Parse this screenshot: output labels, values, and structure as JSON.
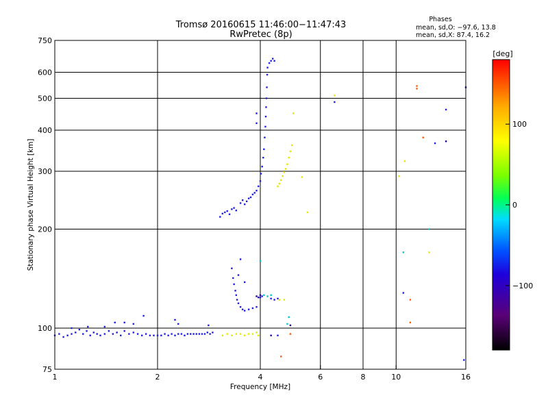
{
  "chart_data": {
    "type": "scatter",
    "title": "Tromsø 20160615 11:46:00−11:47:43",
    "subtitle": "RwPretec (8p)",
    "xlabel": "Frequency [MHz]",
    "ylabel": "Stationary phase Virtual Height [km]",
    "x_scale": "log",
    "y_scale": "log",
    "xlim": [
      1,
      16
    ],
    "ylim": [
      75,
      750
    ],
    "x_ticks": [
      {
        "value": 1,
        "label": "1"
      },
      {
        "value": 2,
        "label": "2"
      },
      {
        "value": 4,
        "label": "4"
      },
      {
        "value": 6,
        "label": "6"
      },
      {
        "value": 8,
        "label": "8"
      },
      {
        "value": 10,
        "label": "10"
      },
      {
        "value": 16,
        "label": "16"
      }
    ],
    "x_grid": [
      2,
      4,
      6,
      8,
      10
    ],
    "y_ticks": [
      {
        "value": 75,
        "label": "75"
      },
      {
        "value": 100,
        "label": "100"
      },
      {
        "value": 200,
        "label": "200"
      },
      {
        "value": 300,
        "label": "300"
      },
      {
        "value": 400,
        "label": "400"
      },
      {
        "value": 500,
        "label": "500"
      },
      {
        "value": 600,
        "label": "600"
      },
      {
        "value": 750,
        "label": "750"
      }
    ],
    "y_grid": [
      100,
      200,
      300,
      400,
      500,
      600
    ],
    "grid": true,
    "legend": {
      "title": "Phases",
      "lines": [
        "mean, sd,O:  −97.6, 13.8",
        "mean, sd,X:   87.4, 16.2"
      ],
      "position": "top-right"
    },
    "colorbar": {
      "label": "[deg]",
      "range": [
        -180,
        180
      ],
      "ticks": [
        {
          "value": 100,
          "label": "100"
        },
        {
          "value": 0,
          "label": "0"
        },
        {
          "value": -100,
          "label": "−100"
        }
      ],
      "colors": [
        "#000000",
        "#5a0078",
        "#1e00dc",
        "#0050ff",
        "#00dcff",
        "#00ff5a",
        "#78ff00",
        "#ffff00",
        "#ffaa00",
        "#ff0000"
      ],
      "position": "right"
    },
    "series": [
      {
        "points": [
          [
            1.0,
            95
          ],
          [
            1.03,
            96
          ],
          [
            1.06,
            94
          ],
          [
            1.09,
            95
          ],
          [
            1.12,
            96
          ],
          [
            1.15,
            97
          ],
          [
            1.18,
            99
          ],
          [
            1.21,
            96
          ],
          [
            1.24,
            98
          ],
          [
            1.27,
            95
          ],
          [
            1.3,
            97
          ],
          [
            1.33,
            96
          ],
          [
            1.36,
            95
          ],
          [
            1.4,
            96
          ],
          [
            1.44,
            98
          ],
          [
            1.48,
            96
          ],
          [
            1.52,
            97
          ],
          [
            1.56,
            95
          ],
          [
            1.6,
            98
          ],
          [
            1.65,
            96
          ],
          [
            1.7,
            97
          ],
          [
            1.75,
            96
          ],
          [
            1.8,
            95
          ],
          [
            1.85,
            96
          ],
          [
            1.9,
            95
          ],
          [
            1.95,
            95
          ],
          [
            2.0,
            95
          ],
          [
            2.05,
            95
          ],
          [
            2.1,
            96
          ],
          [
            2.15,
            95
          ],
          [
            2.2,
            96
          ],
          [
            2.25,
            95
          ],
          [
            2.3,
            96
          ],
          [
            2.35,
            96
          ],
          [
            2.4,
            95
          ],
          [
            2.45,
            96
          ],
          [
            2.5,
            96
          ],
          [
            2.55,
            96
          ],
          [
            2.6,
            96
          ],
          [
            2.65,
            96
          ],
          [
            2.7,
            96
          ],
          [
            2.75,
            96
          ],
          [
            2.8,
            97
          ],
          [
            2.85,
            96
          ],
          [
            2.9,
            97
          ],
          [
            1.12,
            100
          ],
          [
            1.25,
            101
          ],
          [
            1.4,
            101
          ],
          [
            1.5,
            104
          ],
          [
            1.6,
            104
          ],
          [
            1.7,
            103
          ],
          [
            1.82,
            109
          ],
          [
            2.25,
            106
          ],
          [
            2.3,
            103
          ],
          [
            2.82,
            102
          ],
          [
            3.05,
            218
          ],
          [
            3.1,
            223
          ],
          [
            3.15,
            225
          ],
          [
            3.2,
            227
          ],
          [
            3.25,
            222
          ],
          [
            3.3,
            230
          ],
          [
            3.35,
            232
          ],
          [
            3.4,
            228
          ],
          [
            3.5,
            240
          ],
          [
            3.55,
            245
          ],
          [
            3.6,
            238
          ],
          [
            3.65,
            243
          ],
          [
            3.7,
            248
          ],
          [
            3.75,
            250
          ],
          [
            3.8,
            255
          ],
          [
            3.85,
            258
          ],
          [
            3.9,
            262
          ],
          [
            3.95,
            270
          ],
          [
            4.0,
            280
          ],
          [
            4.02,
            295
          ],
          [
            4.05,
            310
          ],
          [
            4.08,
            330
          ],
          [
            4.1,
            350
          ],
          [
            4.12,
            380
          ],
          [
            4.14,
            410
          ],
          [
            4.15,
            440
          ],
          [
            4.16,
            470
          ],
          [
            4.17,
            500
          ],
          [
            4.18,
            540
          ],
          [
            4.19,
            590
          ],
          [
            4.2,
            620
          ],
          [
            4.25,
            640
          ],
          [
            4.3,
            650
          ],
          [
            4.35,
            660
          ],
          [
            4.4,
            650
          ],
          [
            3.9,
            450
          ],
          [
            3.9,
            420
          ],
          [
            3.3,
            152
          ],
          [
            3.33,
            142
          ],
          [
            3.35,
            136
          ],
          [
            3.38,
            130
          ],
          [
            3.4,
            126
          ],
          [
            3.42,
            122
          ],
          [
            3.45,
            119
          ],
          [
            3.5,
            116
          ],
          [
            3.55,
            114
          ],
          [
            3.6,
            113
          ],
          [
            3.7,
            114
          ],
          [
            3.8,
            115
          ],
          [
            3.9,
            116
          ],
          [
            3.5,
            162
          ],
          [
            3.45,
            145
          ],
          [
            3.6,
            138
          ],
          [
            4.3,
            123
          ],
          [
            4.4,
            122
          ],
          [
            4.5,
            123
          ],
          [
            4.0,
            124
          ],
          [
            4.05,
            125
          ],
          [
            6.6,
            487
          ],
          [
            10.5,
            128
          ],
          [
            14.0,
            462
          ],
          [
            13.0,
            365
          ],
          [
            15.8,
            80
          ],
          [
            4.5,
            95
          ]
        ]
      },
      {
        "points": [
          [
            3.1,
            95
          ],
          [
            3.2,
            96
          ],
          [
            3.3,
            95
          ],
          [
            3.4,
            96
          ],
          [
            3.5,
            96
          ],
          [
            3.6,
            95
          ],
          [
            3.7,
            96
          ],
          [
            3.8,
            96
          ],
          [
            3.9,
            97
          ],
          [
            3.95,
            95
          ],
          [
            4.5,
            270
          ],
          [
            4.55,
            275
          ],
          [
            4.6,
            282
          ],
          [
            4.65,
            290
          ],
          [
            4.7,
            298
          ],
          [
            4.75,
            305
          ],
          [
            4.8,
            315
          ],
          [
            4.85,
            330
          ],
          [
            4.9,
            345
          ],
          [
            4.95,
            360
          ],
          [
            5.3,
            288
          ],
          [
            5.0,
            450
          ],
          [
            4.55,
            122
          ],
          [
            4.7,
            122
          ],
          [
            6.6,
            510
          ],
          [
            10.2,
            290
          ],
          [
            10.6,
            322
          ],
          [
            12.5,
            170
          ],
          [
            5.5,
            225
          ]
        ]
      },
      {
        "points": [
          [
            4.8,
            103
          ],
          [
            4.85,
            108
          ],
          [
            4.0,
            160
          ],
          [
            10.5,
            170
          ],
          [
            12.5,
            200
          ],
          [
            4.3,
            126
          ],
          [
            4.2,
            125
          ],
          [
            4.1,
            126
          ]
        ]
      },
      {
        "points": [
          [
            4.6,
            82
          ],
          [
            4.9,
            96
          ],
          [
            11.0,
            104
          ],
          [
            11.0,
            122
          ],
          [
            11.5,
            535
          ],
          [
            12.0,
            380
          ],
          [
            11.5,
            545
          ]
        ]
      },
      {
        "points": [
          [
            4.0,
            126
          ],
          [
            3.9,
            125
          ],
          [
            3.95,
            124
          ],
          [
            4.9,
            102
          ],
          [
            14.0,
            370
          ],
          [
            16.0,
            540
          ],
          [
            4.3,
            95
          ]
        ]
      }
    ]
  }
}
